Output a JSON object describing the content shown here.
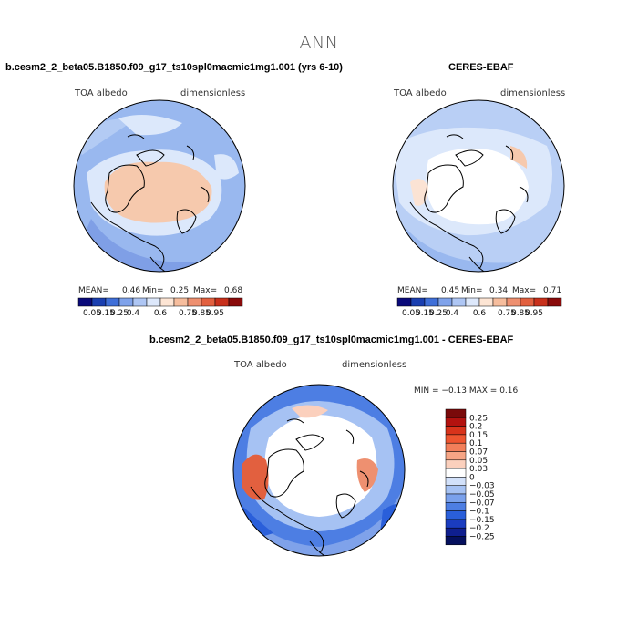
{
  "main_title": "ANN",
  "panels": [
    {
      "title": "b.cesm2_2_beta05.B1850.f09_g17_ts10spl0macmic1mg1.001 (yrs 6-10)",
      "left_label": "TOA albedo",
      "right_label": "dimensionless",
      "mean_label": "MEAN=",
      "mean": "0.46",
      "min_label": "Min=",
      "min": "0.25",
      "max_label": "Max=",
      "max": "0.68"
    },
    {
      "title": "CERES-EBAF",
      "left_label": "TOA albedo",
      "right_label": "dimensionless",
      "mean_label": "MEAN=",
      "mean": "0.45",
      "min_label": "Min=",
      "min": "0.34",
      "max_label": "Max=",
      "max": "0.71"
    },
    {
      "title": "b.cesm2_2_beta05.B1850.f09_g17_ts10spl0macmic1mg1.001 - CERES-EBAF",
      "left_label": "TOA albedo",
      "right_label": "dimensionless",
      "minmax_text": "MIN =  −0.13 MAX =    0.16"
    }
  ],
  "colorbar_h": {
    "colors": [
      "#0a0a7a",
      "#1a3fb0",
      "#3f6fd8",
      "#7fa2ea",
      "#aec6f4",
      "#dde8fb",
      "#fde5d4",
      "#f6bd9d",
      "#ee9070",
      "#e2603f",
      "#c8301b",
      "#8a0b0b"
    ],
    "labels": [
      "0.05",
      "0.15",
      "0.25",
      "0.4",
      "0.6",
      "0.75",
      "0.85",
      "0.95"
    ]
  },
  "colorbar_v": {
    "colors": [
      "#7a0a0a",
      "#b3120f",
      "#d8331b",
      "#ee5530",
      "#f27f5a",
      "#f6a585",
      "#fbd0bd",
      "#ffffff",
      "#d2e1fa",
      "#a6c2f3",
      "#7aa1ec",
      "#4d7ee3",
      "#2a5fda",
      "#1a3cc0",
      "#0f1f8f",
      "#05105e"
    ],
    "labels": [
      "0.25",
      "0.2",
      "0.15",
      "0.1",
      "0.07",
      "0.05",
      "0.03",
      "0",
      "−0.03",
      "−0.05",
      "−0.07",
      "−0.1",
      "−0.15",
      "−0.2",
      "−0.25"
    ]
  }
}
